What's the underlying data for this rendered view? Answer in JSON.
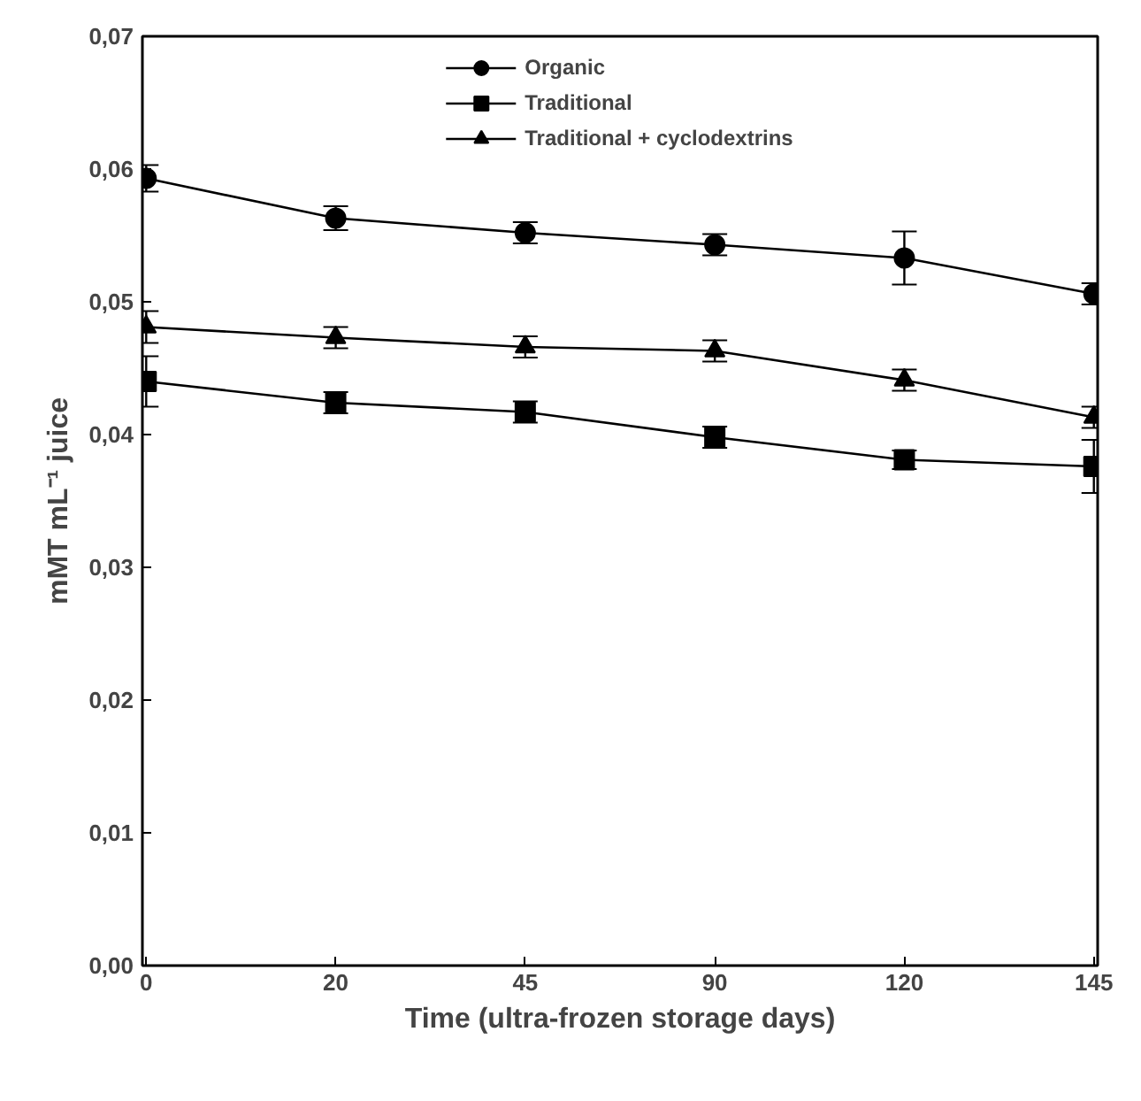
{
  "chart_data": {
    "type": "line",
    "xlabel": "Time (ultra-frozen storage days)",
    "ylabel": "mMT mL⁻¹ juice",
    "categories": [
      "0",
      "20",
      "45",
      "90",
      "120",
      "145"
    ],
    "ylim": [
      0,
      0.07
    ],
    "yticks": [
      {
        "value": 0,
        "label": "0,00"
      },
      {
        "value": 0.01,
        "label": "0,01"
      },
      {
        "value": 0.02,
        "label": "0,02"
      },
      {
        "value": 0.03,
        "label": "0,03"
      },
      {
        "value": 0.04,
        "label": "0,04"
      },
      {
        "value": 0.05,
        "label": "0,05"
      },
      {
        "value": 0.06,
        "label": "0,06"
      },
      {
        "value": 0.07,
        "label": "0,07"
      }
    ],
    "grid": false,
    "legend": "top",
    "line_style": "solid",
    "series": [
      {
        "name": "Organic",
        "color": "#000000",
        "marker": "circle",
        "values": [
          0.0593,
          0.0563,
          0.0552,
          0.0543,
          0.0533,
          0.0506
        ],
        "errors": [
          0.001,
          0.0009,
          0.0008,
          0.0008,
          0.002,
          0.0008
        ]
      },
      {
        "name": "Traditional",
        "color": "#000000",
        "marker": "square",
        "values": [
          0.044,
          0.0424,
          0.0417,
          0.0398,
          0.0381,
          0.0376
        ],
        "errors": [
          0.0019,
          0.0008,
          0.0008,
          0.0008,
          0.0007,
          0.002
        ]
      },
      {
        "name": "Traditional + cyclodextrins",
        "color": "#000000",
        "marker": "triangle",
        "values": [
          0.0481,
          0.0473,
          0.0466,
          0.0463,
          0.0441,
          0.0413
        ],
        "errors": [
          0.0012,
          0.0008,
          0.0008,
          0.0008,
          0.0008,
          0.0008
        ]
      }
    ]
  }
}
